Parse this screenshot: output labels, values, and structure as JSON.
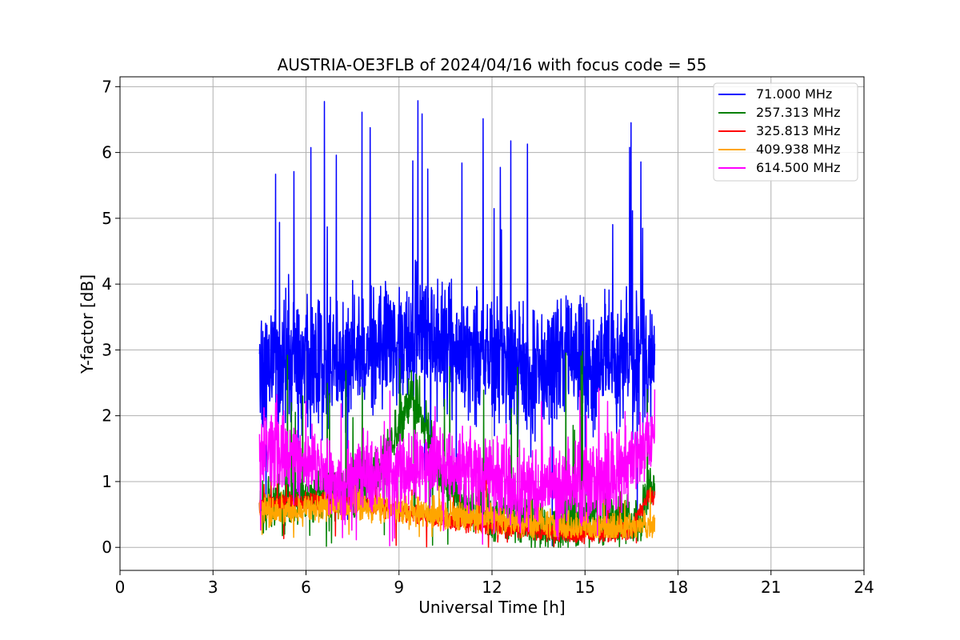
{
  "chart_data": {
    "type": "line",
    "title": "AUSTRIA-OE3FLB of 2024/04/16 with focus code = 55",
    "xlabel": "Universal Time [h]",
    "ylabel": "Y-factor [dB]",
    "xlim": [
      0,
      24
    ],
    "ylim": [
      -0.35,
      7.15
    ],
    "xticks": [
      0,
      3,
      6,
      9,
      12,
      15,
      18,
      21,
      24
    ],
    "xtick_labels": [
      "0",
      "3",
      "6",
      "9",
      "12",
      "15",
      "18",
      "21",
      "24"
    ],
    "yticks": [
      0,
      1,
      2,
      3,
      4,
      5,
      6,
      7
    ],
    "ytick_labels": [
      "0",
      "1",
      "2",
      "3",
      "4",
      "5",
      "6",
      "7"
    ],
    "grid": true,
    "legend_position": "top-right",
    "series": [
      {
        "name": " 71.000 MHz",
        "color": "#0000ff",
        "x": [
          4.5,
          5.0,
          5.5,
          5.9,
          6.3,
          6.7,
          7.2,
          7.7,
          8.2,
          8.8,
          9.2,
          9.6,
          9.85,
          10.4,
          11.0,
          11.6,
          12.2,
          12.7,
          13.2,
          13.7,
          14.2,
          14.8,
          15.3,
          15.9,
          16.4,
          16.65,
          17.0,
          17.25
        ],
        "y": [
          2.7,
          2.8,
          2.9,
          2.8,
          2.7,
          2.8,
          2.9,
          3.0,
          3.1,
          3.2,
          3.1,
          3.2,
          3.3,
          3.1,
          3.0,
          2.9,
          2.8,
          2.7,
          2.6,
          2.7,
          2.8,
          2.9,
          2.8,
          2.9,
          2.8,
          2.9,
          2.8,
          2.9
        ],
        "y_max": 6.8,
        "y_min": 0.0
      },
      {
        "name": " 257.313 MHz",
        "color": "#008000",
        "x": [
          4.5,
          5.5,
          6.5,
          7.5,
          8.0,
          8.6,
          9.0,
          9.4,
          9.8,
          10.2,
          11.0,
          12.0,
          13.0,
          14.0,
          15.0,
          16.0,
          16.8,
          17.0,
          17.25
        ],
        "y": [
          0.6,
          0.7,
          0.8,
          0.8,
          1.0,
          1.4,
          1.9,
          2.3,
          2.0,
          1.2,
          0.7,
          0.5,
          0.4,
          0.3,
          0.4,
          0.4,
          0.4,
          0.9,
          0.9
        ],
        "y_max": 3.05,
        "y_min": 0.0
      },
      {
        "name": " 325.813 MHz",
        "color": "#ff0000",
        "x": [
          4.5,
          5.5,
          6.5,
          7.5,
          8.5,
          9.5,
          10.5,
          11.5,
          12.5,
          13.5,
          14.5,
          15.5,
          16.5,
          17.0,
          17.25
        ],
        "y": [
          0.6,
          0.7,
          0.7,
          0.7,
          0.6,
          0.5,
          0.4,
          0.35,
          0.3,
          0.25,
          0.2,
          0.2,
          0.25,
          0.75,
          0.8
        ],
        "y_max": 1.15,
        "y_min": 0.0
      },
      {
        "name": " 409.938 MHz",
        "color": "#ffa500",
        "x": [
          4.5,
          5.5,
          6.5,
          7.5,
          8.5,
          9.5,
          10.5,
          11.5,
          12.5,
          13.5,
          14.5,
          15.5,
          16.5,
          17.25
        ],
        "y": [
          0.55,
          0.55,
          0.6,
          0.65,
          0.6,
          0.55,
          0.5,
          0.45,
          0.4,
          0.35,
          0.3,
          0.3,
          0.3,
          0.35
        ],
        "y_max": 0.95,
        "y_min": 0.15
      },
      {
        "name": " 614.500 MHz",
        "color": "#ff00ff",
        "x": [
          4.5,
          5.0,
          5.5,
          6.0,
          6.5,
          7.0,
          7.5,
          8.0,
          8.5,
          9.0,
          10.0,
          11.0,
          12.0,
          13.0,
          14.0,
          15.0,
          16.0,
          16.5,
          17.0,
          17.25
        ],
        "y": [
          1.4,
          1.5,
          1.4,
          1.3,
          1.2,
          1.0,
          1.0,
          1.1,
          1.1,
          1.1,
          1.2,
          1.2,
          1.1,
          0.9,
          0.9,
          1.0,
          1.1,
          1.3,
          1.6,
          1.7
        ],
        "y_max": 2.45,
        "y_min": 0.0
      }
    ]
  }
}
